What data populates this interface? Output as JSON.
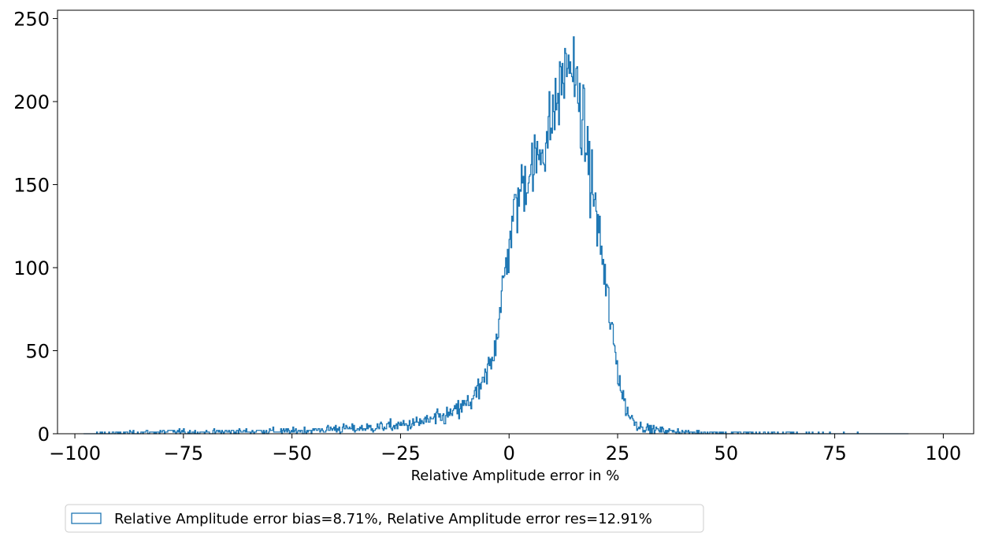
{
  "chart_data": {
    "type": "histogram",
    "title": "",
    "xlabel": "Relative Amplitude error in %",
    "ylabel": "",
    "xlim": [
      -104,
      107
    ],
    "ylim": [
      0,
      255
    ],
    "x_ticks": [
      -100,
      -75,
      -50,
      -25,
      0,
      25,
      50,
      75,
      100
    ],
    "y_ticks": [
      0,
      50,
      100,
      150,
      200,
      250
    ],
    "grid": false,
    "legend": {
      "placement": "below-left",
      "entries": [
        "Relative Amplitude error bias=8.71%, Relative Amplitude error res=12.91%"
      ]
    },
    "series_color": "#1f77b4",
    "histogram_profile": {
      "x": [
        -98,
        -90,
        -80,
        -70,
        -60,
        -50,
        -45,
        -40,
        -35,
        -30,
        -25,
        -20,
        -15,
        -12,
        -10,
        -8,
        -6,
        -5,
        -4,
        -3,
        -2,
        -1,
        0,
        1,
        2,
        3,
        4,
        5,
        6,
        7,
        8,
        9,
        10,
        11,
        12,
        13,
        14,
        15,
        16,
        17,
        18,
        19,
        20,
        21,
        22,
        23,
        24,
        25,
        26,
        27,
        28,
        29,
        30,
        32,
        35,
        40,
        50,
        60,
        70,
        80,
        92
      ],
      "y": [
        0,
        0.5,
        1,
        1,
        1.5,
        1.5,
        2,
        3,
        3,
        4,
        5,
        7,
        10,
        14,
        17,
        22,
        29,
        36,
        45,
        58,
        75,
        95,
        115,
        130,
        140,
        150,
        155,
        160,
        162,
        168,
        175,
        180,
        190,
        200,
        210,
        220,
        225,
        215,
        200,
        185,
        170,
        150,
        135,
        115,
        95,
        75,
        55,
        40,
        25,
        15,
        10,
        7,
        5,
        3,
        2,
        1,
        0.5,
        0.3,
        0.2,
        0.1,
        0
      ]
    }
  }
}
